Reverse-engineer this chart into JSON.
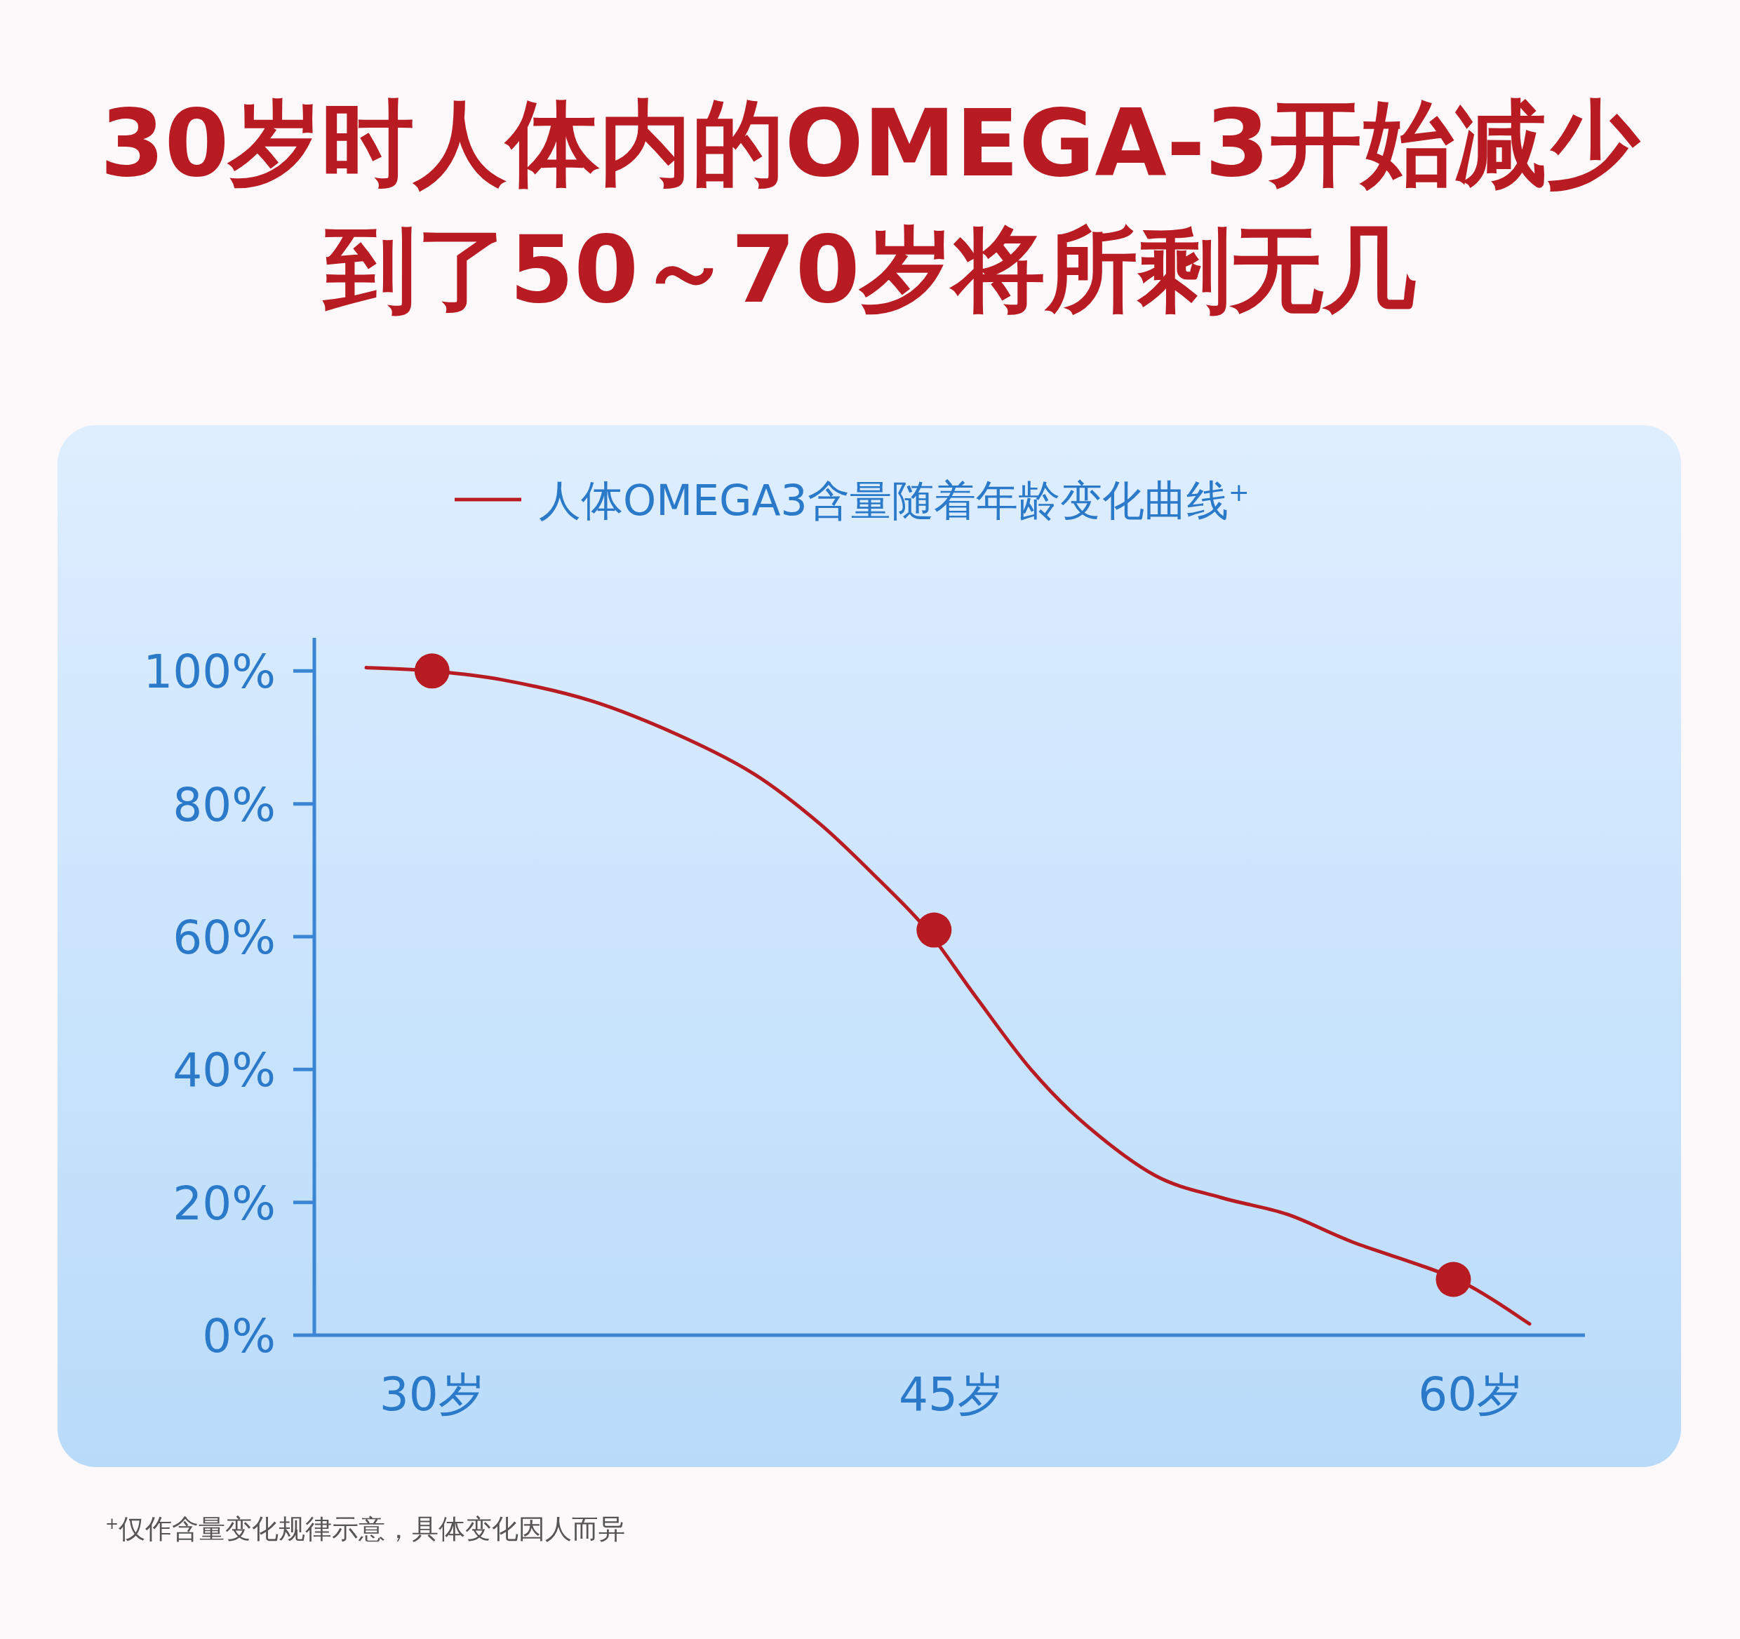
{
  "chart_data": {
    "type": "line",
    "title": "30岁时人体内的OMEGA-3开始减少",
    "subtitle": "到了50～70岁将所剩无几",
    "xlim": [
      26.6,
      63.3
    ],
    "xticks": [
      {
        "value": 30,
        "label": "30岁"
      },
      {
        "value": 45,
        "label": "45岁"
      },
      {
        "value": 60,
        "label": "60岁"
      }
    ],
    "ylim": [
      0,
      105
    ],
    "yticks": [
      {
        "value": 0,
        "label": "0%"
      },
      {
        "value": 20,
        "label": "20%"
      },
      {
        "value": 40,
        "label": "40%"
      },
      {
        "value": 60,
        "label": "60%"
      },
      {
        "value": 80,
        "label": "80%"
      },
      {
        "value": 100,
        "label": "100%"
      }
    ],
    "legend": "top",
    "grid": false,
    "line_style": "solid",
    "series": [
      {
        "name": "人体OMEGA3含量随着年龄变化曲线$^{+}$",
        "color": "#b81c22",
        "x": [
          28.1,
          30,
          32,
          34.6,
          37.1,
          39.3,
          41.2,
          42.9,
          44.3,
          45.7,
          47.3,
          48.9,
          50.9,
          52.8,
          54.7,
          56.6,
          59.6,
          61.7
        ],
        "values": [
          100.5,
          100,
          98.7,
          95.5,
          90.4,
          84.5,
          77,
          68.6,
          61,
          51,
          40,
          31.6,
          24,
          20.7,
          18.2,
          14,
          8.4,
          1.7
        ]
      },
      {
        "type": "scatter",
        "marker": "circle",
        "color": "#b81c22",
        "x": [
          30,
          44.5,
          59.5
        ],
        "values": [
          100,
          61,
          8.4
        ]
      }
    ],
    "annotations": [
      "$^{+}$仅作含量变化规律示意，具体变化因人而异"
    ]
  }
}
